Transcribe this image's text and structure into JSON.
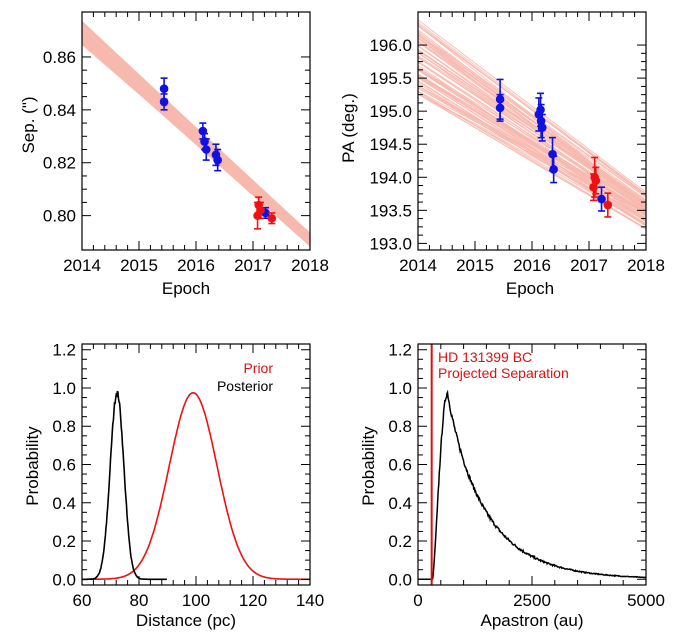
{
  "colors": {
    "data_blue": "#1010e0",
    "data_red": "#ee1111",
    "fit_lines": "#f7b9ae",
    "posterior": "#000000",
    "prior": "#e01010",
    "projected_separation": "#e01010"
  },
  "chart_data": [
    {
      "id": "sep",
      "type": "scatter",
      "xlabel": "Epoch",
      "ylabel": "Sep. (\")",
      "xlim": [
        2014,
        2018
      ],
      "ylim": [
        0.787,
        0.877
      ],
      "xticks": [
        2014,
        2015,
        2016,
        2017,
        2018
      ],
      "xticklabels": [
        "2014",
        "2015",
        "2016",
        "2017",
        "2018"
      ],
      "yticks": [
        0.8,
        0.82,
        0.84,
        0.86
      ],
      "yticklabels": [
        "0.80",
        "0.82",
        "0.84",
        "0.86"
      ],
      "band": {
        "start": [
          0.8755,
          0.8665
        ],
        "end": [
          0.7925,
          0.7865
        ]
      },
      "series": [
        {
          "color": "blue",
          "points": [
            {
              "x": 2015.44,
              "y": 0.848,
              "err": 0.004
            },
            {
              "x": 2015.44,
              "y": 0.843,
              "err": 0.003
            },
            {
              "x": 2016.12,
              "y": 0.832,
              "err": 0.003
            },
            {
              "x": 2016.15,
              "y": 0.828,
              "err": 0.003
            },
            {
              "x": 2016.18,
              "y": 0.825,
              "err": 0.004
            },
            {
              "x": 2016.35,
              "y": 0.823,
              "err": 0.004
            },
            {
              "x": 2016.38,
              "y": 0.821,
              "err": 0.004
            },
            {
              "x": 2017.22,
              "y": 0.801,
              "err": 0.002
            }
          ]
        },
        {
          "color": "red",
          "points": [
            {
              "x": 2017.1,
              "y": 0.804,
              "err": 0.003
            },
            {
              "x": 2017.13,
              "y": 0.802,
              "err": 0.003
            },
            {
              "x": 2017.08,
              "y": 0.8,
              "err": 0.005
            },
            {
              "x": 2017.33,
              "y": 0.799,
              "err": 0.002
            }
          ]
        }
      ]
    },
    {
      "id": "pa",
      "type": "scatter",
      "xlabel": "Epoch",
      "ylabel": "PA (deg.)",
      "xlim": [
        2014,
        2018
      ],
      "ylim": [
        192.9,
        196.5
      ],
      "xticks": [
        2014,
        2015,
        2016,
        2017,
        2018
      ],
      "xticklabels": [
        "2014",
        "2015",
        "2016",
        "2017",
        "2018"
      ],
      "yticks": [
        193.0,
        193.5,
        194.0,
        194.5,
        195.0,
        195.5,
        196.0
      ],
      "yticklabels": [
        "193.0",
        "193.5",
        "194.0",
        "194.5",
        "195.0",
        "195.5",
        "196.0"
      ],
      "band": {
        "start": [
          196.45,
          195.3
        ],
        "end": [
          193.8,
          193.2
        ]
      },
      "series": [
        {
          "color": "blue",
          "points": [
            {
              "x": 2015.44,
              "y": 195.18,
              "err": 0.3
            },
            {
              "x": 2015.44,
              "y": 195.05,
              "err": 0.2
            },
            {
              "x": 2016.12,
              "y": 194.95,
              "err": 0.25
            },
            {
              "x": 2016.15,
              "y": 195.02,
              "err": 0.25
            },
            {
              "x": 2016.16,
              "y": 194.85,
              "err": 0.25
            },
            {
              "x": 2016.18,
              "y": 194.75,
              "err": 0.2
            },
            {
              "x": 2016.36,
              "y": 194.35,
              "err": 0.25
            },
            {
              "x": 2016.38,
              "y": 194.12,
              "err": 0.2
            },
            {
              "x": 2017.22,
              "y": 193.67,
              "err": 0.18
            }
          ]
        },
        {
          "color": "red",
          "points": [
            {
              "x": 2017.1,
              "y": 194.0,
              "err": 0.3
            },
            {
              "x": 2017.12,
              "y": 193.95,
              "err": 0.2
            },
            {
              "x": 2017.08,
              "y": 193.85,
              "err": 0.2
            },
            {
              "x": 2017.33,
              "y": 193.58,
              "err": 0.18
            }
          ]
        }
      ]
    },
    {
      "id": "dist",
      "type": "line",
      "xlabel": "Distance (pc)",
      "ylabel": "Probability",
      "xlim": [
        60,
        140
      ],
      "ylim": [
        -0.03,
        1.23
      ],
      "xticks": [
        60,
        80,
        100,
        120,
        140
      ],
      "xticklabels": [
        "60",
        "80",
        "100",
        "120",
        "140"
      ],
      "yticks": [
        0.0,
        0.2,
        0.4,
        0.6,
        0.8,
        1.0,
        1.2
      ],
      "yticklabels": [
        "0.0",
        "0.2",
        "0.4",
        "0.6",
        "0.8",
        "1.0",
        "1.2"
      ],
      "legend": {
        "position": "top-right",
        "prior": "Prior",
        "posterior": "Posterior"
      },
      "series": [
        {
          "name": "Prior",
          "color": "red",
          "shape": "gaussian",
          "mean": 99,
          "sigma": 8.4,
          "peak": 0.975
        },
        {
          "name": "Posterior",
          "color": "black",
          "shape": "gaussian-noisy",
          "mean": 72.3,
          "sigma": 2.4,
          "peak": 0.975
        }
      ]
    },
    {
      "id": "apastron",
      "type": "line",
      "xlabel": "Apastron (au)",
      "ylabel": "Probability",
      "xlim": [
        0,
        5000
      ],
      "ylim": [
        -0.03,
        1.23
      ],
      "xticks": [
        0,
        2500,
        5000
      ],
      "xticklabels": [
        "0",
        "2500",
        "5000"
      ],
      "minor_xticks": [
        500,
        1000,
        1500,
        2000,
        3000,
        3500,
        4000,
        4500
      ],
      "yticks": [
        0.0,
        0.2,
        0.4,
        0.6,
        0.8,
        1.0,
        1.2
      ],
      "yticklabels": [
        "0.0",
        "0.2",
        "0.4",
        "0.6",
        "0.8",
        "1.0",
        "1.2"
      ],
      "annotation": {
        "line1": "HD 131399 BC",
        "line2": "Projected Separation",
        "x": 300
      },
      "series": [
        {
          "name": "Apastron",
          "color": "black",
          "shape": "skewed",
          "peak_x": 650,
          "peak": 0.975
        }
      ]
    }
  ]
}
